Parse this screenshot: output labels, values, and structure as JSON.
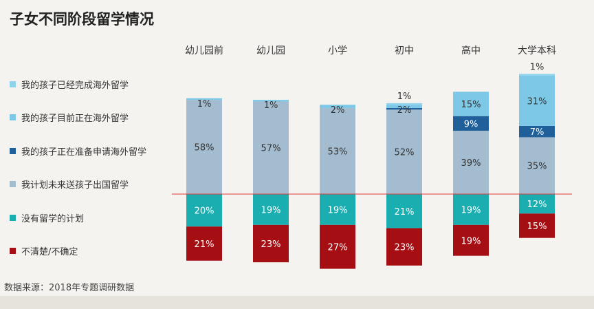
{
  "title": "子女不同阶段留学情况",
  "source": "数据来源：2018年专题调研数据",
  "chart_data": {
    "type": "bar",
    "stacked": true,
    "diverging": true,
    "categories": [
      "幼儿园前",
      "幼儿园",
      "小学",
      "初中",
      "高中",
      "大学本科"
    ],
    "series": [
      {
        "name": "我的孩子已经完成海外留学",
        "color": "#8fd3ec",
        "values": [
          0,
          0,
          0,
          1,
          0,
          1
        ],
        "labels": [
          "",
          "",
          "",
          "1%",
          "",
          "1%"
        ]
      },
      {
        "name": "我的孩子目前正在海外留学",
        "color": "#7cc8e6",
        "values": [
          1,
          1,
          2,
          2,
          15,
          31
        ],
        "labels": [
          "1%",
          "1%",
          "2%",
          "2%",
          "15%",
          "31%"
        ]
      },
      {
        "name": "我的孩子正在准备申请海外留学",
        "color": "#1f5f9a",
        "values": [
          0,
          0,
          0,
          1,
          9,
          7
        ],
        "labels": [
          "",
          "",
          "",
          "",
          "9%",
          "7%"
        ]
      },
      {
        "name": "我计划未来送孩子出国留学",
        "color": "#a3bccf",
        "values": [
          58,
          57,
          53,
          52,
          39,
          35
        ],
        "labels": [
          "58%",
          "57%",
          "53%",
          "52%",
          "39%",
          "35%"
        ]
      },
      {
        "name": "没有留学的计划",
        "color": "#1aaeb0",
        "values": [
          20,
          19,
          19,
          21,
          19,
          12
        ],
        "labels": [
          "20%",
          "19%",
          "19%",
          "21%",
          "19%",
          "12%"
        ]
      },
      {
        "name": "不清楚/不确定",
        "color": "#a50f14",
        "values": [
          21,
          23,
          27,
          23,
          19,
          15
        ],
        "labels": [
          "21%",
          "23%",
          "27%",
          "23%",
          "19%",
          "15%"
        ]
      }
    ],
    "baseline_color": "#e03a3a",
    "grid": false,
    "legend_position": "left"
  }
}
